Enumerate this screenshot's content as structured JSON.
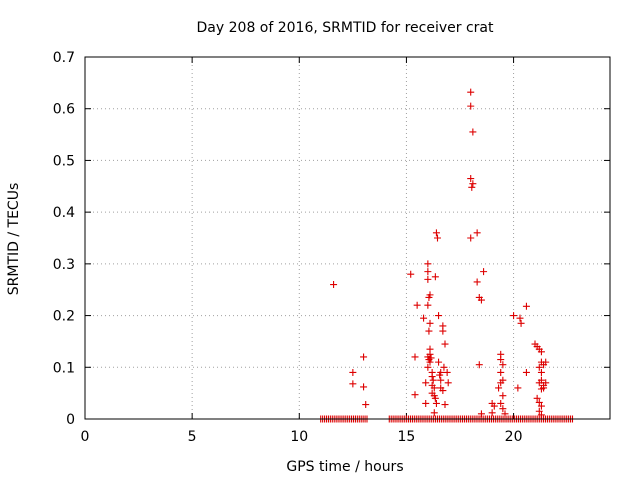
{
  "chart_data": {
    "type": "scatter",
    "title": "Day 208 of 2016, SRMTID for receiver crat",
    "xlabel": "GPS time / hours",
    "ylabel": "SRMTID / TECUs",
    "xlim": [
      0,
      24.5
    ],
    "ylim": [
      0,
      0.7
    ],
    "xticks": [
      0,
      5,
      10,
      15,
      20
    ],
    "xtick_labels": [
      "0",
      "5",
      "10",
      "15",
      "20"
    ],
    "yticks": [
      0,
      0.1,
      0.2,
      0.3,
      0.4,
      0.5,
      0.6,
      0.7
    ],
    "ytick_labels": [
      "0",
      "0.1",
      "0.2",
      "0.3",
      "0.4",
      "0.5",
      "0.6",
      "0.7"
    ],
    "grid": true,
    "marker": "+",
    "marker_color": "#dd0000",
    "baseline_segments": [
      [
        11.0,
        13.2
      ],
      [
        14.2,
        22.8
      ]
    ],
    "series": [
      {
        "name": "SRMTID",
        "points": [
          [
            11.6,
            0.26
          ],
          [
            12.5,
            0.09
          ],
          [
            12.5,
            0.068
          ],
          [
            13.0,
            0.12
          ],
          [
            13.0,
            0.062
          ],
          [
            13.1,
            0.028
          ],
          [
            15.2,
            0.28
          ],
          [
            15.4,
            0.12
          ],
          [
            15.4,
            0.047
          ],
          [
            15.5,
            0.22
          ],
          [
            15.8,
            0.195
          ],
          [
            15.9,
            0.07
          ],
          [
            15.9,
            0.03
          ],
          [
            16.0,
            0.3
          ],
          [
            16.0,
            0.285
          ],
          [
            16.0,
            0.27
          ],
          [
            16.0,
            0.22
          ],
          [
            16.1,
            0.24
          ],
          [
            16.05,
            0.235
          ],
          [
            16.1,
            0.185
          ],
          [
            16.05,
            0.17
          ],
          [
            16.1,
            0.135
          ],
          [
            16.1,
            0.125
          ],
          [
            16.0,
            0.12
          ],
          [
            16.05,
            0.115
          ],
          [
            16.1,
            0.11
          ],
          [
            16.0,
            0.1
          ],
          [
            16.15,
            0.118
          ],
          [
            16.2,
            0.09
          ],
          [
            16.2,
            0.082
          ],
          [
            16.25,
            0.075
          ],
          [
            16.2,
            0.065
          ],
          [
            16.3,
            0.06
          ],
          [
            16.2,
            0.05
          ],
          [
            16.3,
            0.045
          ],
          [
            16.35,
            0.04
          ],
          [
            16.4,
            0.03
          ],
          [
            16.3,
            0.012
          ],
          [
            16.35,
            0.275
          ],
          [
            16.4,
            0.36
          ],
          [
            16.45,
            0.35
          ],
          [
            16.5,
            0.2
          ],
          [
            16.5,
            0.11
          ],
          [
            16.6,
            0.09
          ],
          [
            16.55,
            0.085
          ],
          [
            16.6,
            0.075
          ],
          [
            16.7,
            0.17
          ],
          [
            16.7,
            0.18
          ],
          [
            16.8,
            0.145
          ],
          [
            16.75,
            0.1
          ],
          [
            16.6,
            0.06
          ],
          [
            16.7,
            0.055
          ],
          [
            16.8,
            0.028
          ],
          [
            16.9,
            0.09
          ],
          [
            16.95,
            0.07
          ],
          [
            18.0,
            0.632
          ],
          [
            18.0,
            0.605
          ],
          [
            18.1,
            0.555
          ],
          [
            18.0,
            0.465
          ],
          [
            18.1,
            0.455
          ],
          [
            18.05,
            0.448
          ],
          [
            18.0,
            0.35
          ],
          [
            18.3,
            0.36
          ],
          [
            18.3,
            0.265
          ],
          [
            18.4,
            0.235
          ],
          [
            18.5,
            0.23
          ],
          [
            18.6,
            0.285
          ],
          [
            18.4,
            0.105
          ],
          [
            18.5,
            0.01
          ],
          [
            19.0,
            0.03
          ],
          [
            19.1,
            0.025
          ],
          [
            19.0,
            0.012
          ],
          [
            19.4,
            0.125
          ],
          [
            19.4,
            0.115
          ],
          [
            19.5,
            0.105
          ],
          [
            19.4,
            0.09
          ],
          [
            19.5,
            0.075
          ],
          [
            19.4,
            0.07
          ],
          [
            19.3,
            0.06
          ],
          [
            19.5,
            0.045
          ],
          [
            19.4,
            0.03
          ],
          [
            19.5,
            0.02
          ],
          [
            19.6,
            0.01
          ],
          [
            20.0,
            0.2
          ],
          [
            20.3,
            0.195
          ],
          [
            20.35,
            0.185
          ],
          [
            20.2,
            0.06
          ],
          [
            20.6,
            0.218
          ],
          [
            20.6,
            0.09
          ],
          [
            21.0,
            0.145
          ],
          [
            21.1,
            0.14
          ],
          [
            21.2,
            0.135
          ],
          [
            21.3,
            0.13
          ],
          [
            21.3,
            0.11
          ],
          [
            21.4,
            0.105
          ],
          [
            21.2,
            0.1
          ],
          [
            21.3,
            0.09
          ],
          [
            21.3,
            0.075
          ],
          [
            21.2,
            0.07
          ],
          [
            21.4,
            0.065
          ],
          [
            21.3,
            0.058
          ],
          [
            21.1,
            0.04
          ],
          [
            21.2,
            0.032
          ],
          [
            21.3,
            0.025
          ],
          [
            21.2,
            0.015
          ],
          [
            21.3,
            0.008
          ],
          [
            21.4,
            0.06
          ],
          [
            21.5,
            0.11
          ],
          [
            21.5,
            0.07
          ]
        ]
      }
    ]
  }
}
